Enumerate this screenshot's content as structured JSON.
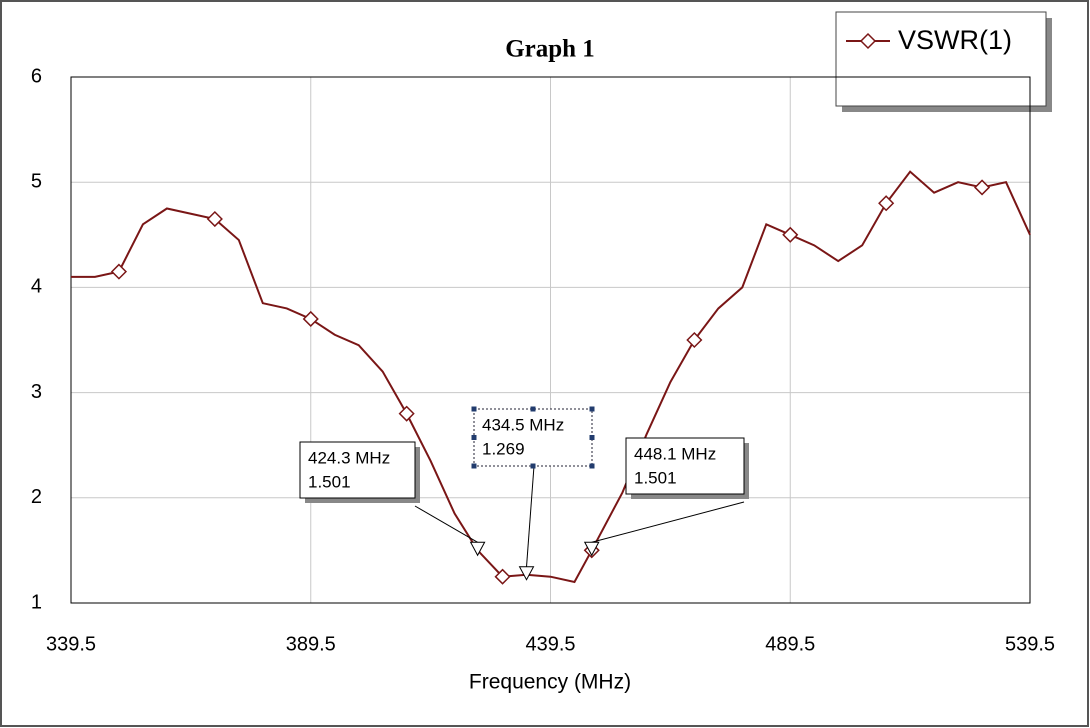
{
  "chart_data": {
    "type": "line",
    "title": "Graph 1",
    "xlabel": "Frequency (MHz)",
    "x": [
      339.5,
      344.5,
      349.5,
      354.5,
      359.5,
      364.5,
      369.5,
      374.5,
      379.5,
      384.5,
      389.5,
      394.5,
      399.5,
      404.5,
      409.5,
      414.5,
      419.5,
      424.3,
      429.5,
      434.5,
      439.5,
      444.5,
      448.1,
      454.5,
      459.5,
      464.5,
      469.5,
      474.5,
      479.5,
      484.5,
      489.5,
      494.5,
      499.5,
      504.5,
      509.5,
      514.5,
      519.5,
      524.5,
      529.5,
      534.5,
      539.5
    ],
    "series": [
      {
        "name": "VSWR(1)",
        "color": "#7a1616",
        "values": [
          4.1,
          4.1,
          4.15,
          4.6,
          4.75,
          4.7,
          4.65,
          4.45,
          3.85,
          3.8,
          3.7,
          3.55,
          3.45,
          3.2,
          2.8,
          2.35,
          1.85,
          1.501,
          1.25,
          1.269,
          1.25,
          1.2,
          1.501,
          2.05,
          2.6,
          3.1,
          3.5,
          3.8,
          4.0,
          4.6,
          4.5,
          4.4,
          4.25,
          4.4,
          4.8,
          5.1,
          4.9,
          5.0,
          4.95,
          5.0,
          4.5
        ]
      }
    ],
    "xlim": [
      339.5,
      539.5
    ],
    "xticks": [
      339.5,
      389.5,
      439.5,
      489.5,
      539.5
    ],
    "ylim": [
      1,
      6
    ],
    "yticks": [
      1,
      2,
      3,
      4,
      5,
      6
    ],
    "grid": true,
    "legend": "top-right",
    "annotations": [
      {
        "x": 424.3,
        "x_label": "424.3 MHz",
        "value": 1.501
      },
      {
        "x": 434.5,
        "x_label": "434.5 MHz",
        "value": 1.269
      },
      {
        "x": 448.1,
        "x_label": "448.1 MHz",
        "value": 1.501
      }
    ]
  }
}
